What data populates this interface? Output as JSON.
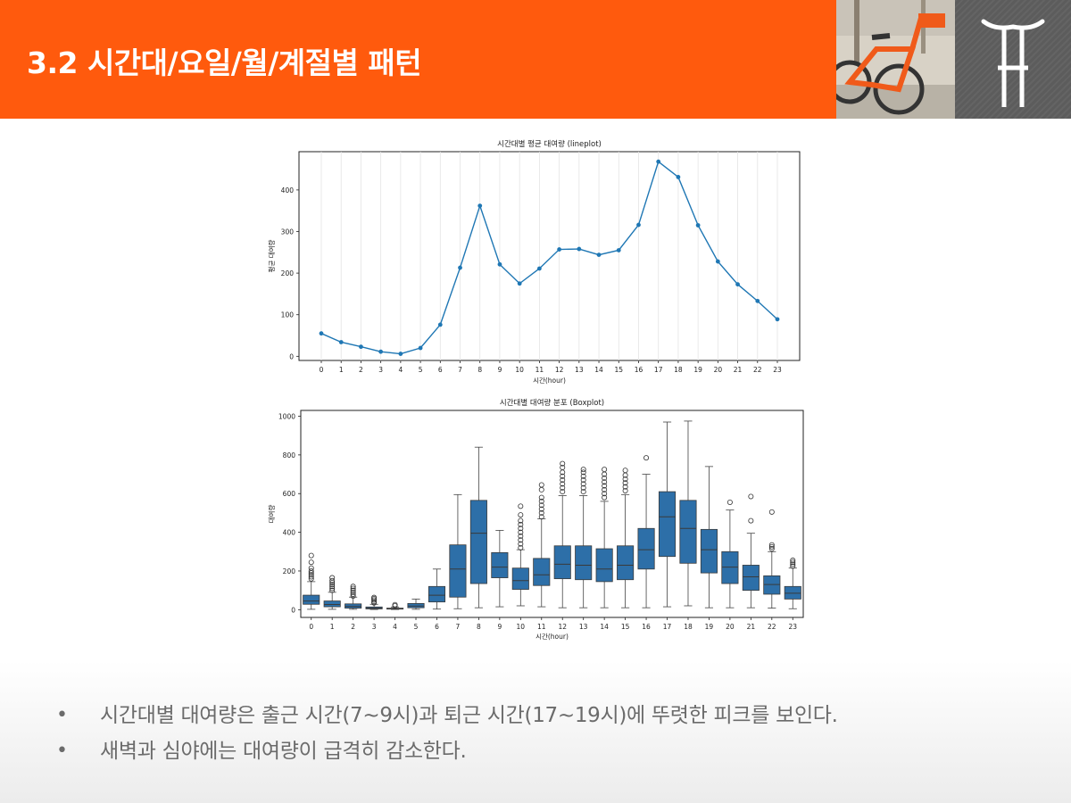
{
  "header": {
    "title": "3.2 시간대/요일/월/계절별 패턴"
  },
  "logo": {
    "icon": "bike-handlebar-icon"
  },
  "colors": {
    "accent": "#ff5a0d",
    "series": "#1f77b4",
    "box_fill": "#2d6fa8",
    "text": "#6b6b6b"
  },
  "chart_data": [
    {
      "type": "line",
      "title": "시간대별 평균 대여량 (lineplot)",
      "xlabel": "시간(hour)",
      "ylabel": "평균 대여량",
      "x": [
        0,
        1,
        2,
        3,
        4,
        5,
        6,
        7,
        8,
        9,
        10,
        11,
        12,
        13,
        14,
        15,
        16,
        17,
        18,
        19,
        20,
        21,
        22,
        23
      ],
      "y": [
        55,
        34,
        23,
        11,
        6,
        20,
        76,
        213,
        362,
        221,
        175,
        211,
        257,
        258,
        244,
        255,
        316,
        468,
        431,
        315,
        228,
        173,
        133,
        89
      ],
      "yticks": [
        0,
        100,
        200,
        300,
        400
      ],
      "ylim": [
        -10,
        492
      ],
      "grid": "vertical"
    },
    {
      "type": "box",
      "title": "시간대별 대여량 분포 (Boxplot)",
      "xlabel": "시간(hour)",
      "ylabel": "대여량",
      "categories": [
        "0",
        "1",
        "2",
        "3",
        "4",
        "5",
        "6",
        "7",
        "8",
        "9",
        "10",
        "11",
        "12",
        "13",
        "14",
        "15",
        "16",
        "17",
        "18",
        "19",
        "20",
        "21",
        "22",
        "23"
      ],
      "yticks": [
        0,
        200,
        400,
        600,
        800,
        1000
      ],
      "ylim": [
        -40,
        1030
      ],
      "boxes": [
        {
          "lo": 2,
          "q1": 28,
          "med": 45,
          "q3": 75,
          "hi": 145,
          "outliers": [
            160,
            170,
            180,
            190,
            200,
            215,
            245,
            280
          ]
        },
        {
          "lo": 2,
          "q1": 15,
          "med": 27,
          "q3": 45,
          "hi": 90,
          "outliers": [
            100,
            110,
            120,
            130,
            140,
            150,
            165
          ]
        },
        {
          "lo": 2,
          "q1": 8,
          "med": 17,
          "q3": 30,
          "hi": 65,
          "outliers": [
            70,
            80,
            90,
            100,
            110,
            120
          ]
        },
        {
          "lo": 1,
          "q1": 4,
          "med": 8,
          "q3": 14,
          "hi": 28,
          "outliers": [
            35,
            42,
            50,
            57,
            63
          ]
        },
        {
          "lo": 1,
          "q1": 3,
          "med": 5,
          "q3": 8,
          "hi": 14,
          "outliers": [
            20,
            26
          ]
        },
        {
          "lo": 2,
          "q1": 10,
          "med": 19,
          "q3": 32,
          "hi": 55,
          "outliers": []
        },
        {
          "lo": 3,
          "q1": 40,
          "med": 75,
          "q3": 120,
          "hi": 210,
          "outliers": []
        },
        {
          "lo": 5,
          "q1": 65,
          "med": 210,
          "q3": 335,
          "hi": 595,
          "outliers": []
        },
        {
          "lo": 10,
          "q1": 135,
          "med": 395,
          "q3": 565,
          "hi": 840,
          "outliers": []
        },
        {
          "lo": 15,
          "q1": 165,
          "med": 220,
          "q3": 295,
          "hi": 410,
          "outliers": []
        },
        {
          "lo": 20,
          "q1": 105,
          "med": 150,
          "q3": 215,
          "hi": 310,
          "outliers": [
            320,
            340,
            360,
            380,
            400,
            420,
            440,
            460,
            490,
            535
          ]
        },
        {
          "lo": 15,
          "q1": 125,
          "med": 180,
          "q3": 265,
          "hi": 470,
          "outliers": [
            480,
            500,
            520,
            540,
            560,
            580,
            620,
            645
          ]
        },
        {
          "lo": 10,
          "q1": 160,
          "med": 235,
          "q3": 330,
          "hi": 590,
          "outliers": [
            610,
            630,
            650,
            670,
            690,
            710,
            735,
            755
          ]
        },
        {
          "lo": 10,
          "q1": 155,
          "med": 230,
          "q3": 330,
          "hi": 590,
          "outliers": [
            610,
            630,
            650,
            670,
            690,
            710,
            725
          ]
        },
        {
          "lo": 10,
          "q1": 145,
          "med": 210,
          "q3": 315,
          "hi": 560,
          "outliers": [
            580,
            600,
            620,
            640,
            660,
            680,
            700,
            725
          ]
        },
        {
          "lo": 10,
          "q1": 155,
          "med": 230,
          "q3": 330,
          "hi": 595,
          "outliers": [
            615,
            635,
            655,
            675,
            695,
            720
          ]
        },
        {
          "lo": 10,
          "q1": 210,
          "med": 310,
          "q3": 420,
          "hi": 700,
          "outliers": [
            785
          ]
        },
        {
          "lo": 15,
          "q1": 275,
          "med": 480,
          "q3": 610,
          "hi": 970,
          "outliers": []
        },
        {
          "lo": 20,
          "q1": 240,
          "med": 420,
          "q3": 565,
          "hi": 975,
          "outliers": []
        },
        {
          "lo": 10,
          "q1": 190,
          "med": 310,
          "q3": 415,
          "hi": 740,
          "outliers": []
        },
        {
          "lo": 10,
          "q1": 135,
          "med": 220,
          "q3": 300,
          "hi": 515,
          "outliers": [
            555
          ]
        },
        {
          "lo": 10,
          "q1": 100,
          "med": 170,
          "q3": 230,
          "hi": 395,
          "outliers": [
            460,
            585
          ]
        },
        {
          "lo": 8,
          "q1": 80,
          "med": 130,
          "q3": 175,
          "hi": 300,
          "outliers": [
            315,
            325,
            335,
            505
          ]
        },
        {
          "lo": 5,
          "q1": 55,
          "med": 85,
          "q3": 120,
          "hi": 215,
          "outliers": [
            225,
            235,
            245,
            255
          ]
        }
      ]
    }
  ],
  "bullets": [
    "시간대별 대여량은 출근 시간(7~9시)과 퇴근 시간(17~19시)에 뚜렷한 피크를 보인다.",
    "새벽과 심야에는 대여량이 급격히 감소한다."
  ]
}
